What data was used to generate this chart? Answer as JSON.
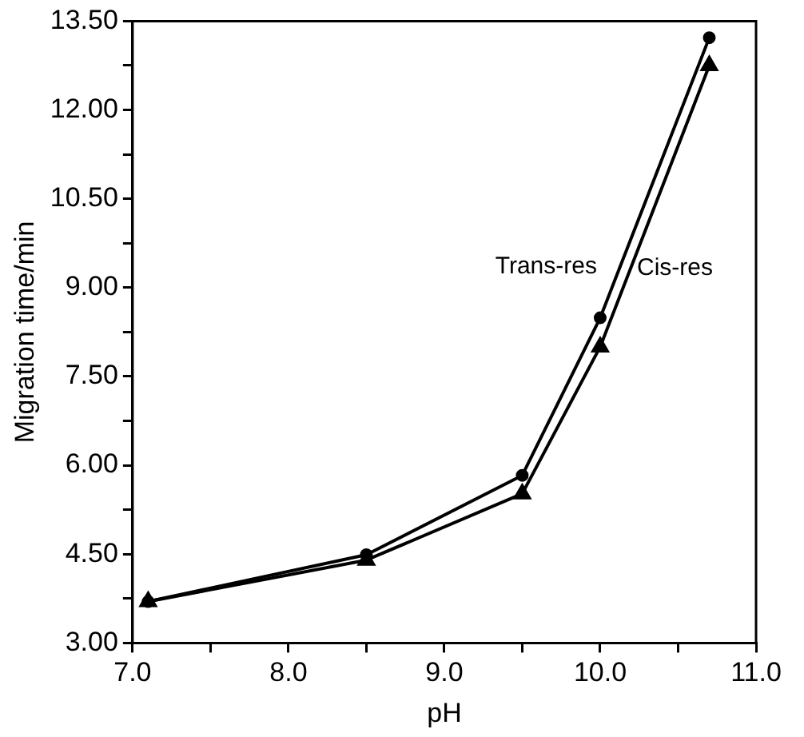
{
  "chart_data": {
    "type": "line",
    "xlabel": "pH",
    "ylabel": "Migration time/min",
    "xlim": [
      7.0,
      11.0
    ],
    "ylim": [
      3.0,
      13.5
    ],
    "xticks": [
      {
        "value": 7.0,
        "label": "7.0"
      },
      {
        "value": 7.5,
        "label": null
      },
      {
        "value": 8.0,
        "label": "8.0"
      },
      {
        "value": 8.5,
        "label": null
      },
      {
        "value": 9.0,
        "label": "9.0"
      },
      {
        "value": 9.5,
        "label": null
      },
      {
        "value": 10.0,
        "label": "10.0"
      },
      {
        "value": 10.5,
        "label": null
      },
      {
        "value": 11.0,
        "label": "11.0"
      }
    ],
    "yticks": [
      {
        "value": 3.0,
        "label": "3.00"
      },
      {
        "value": 3.75,
        "label": null
      },
      {
        "value": 4.5,
        "label": "4.50"
      },
      {
        "value": 5.25,
        "label": null
      },
      {
        "value": 6.0,
        "label": "6.00"
      },
      {
        "value": 6.75,
        "label": null
      },
      {
        "value": 7.5,
        "label": "7.50"
      },
      {
        "value": 8.25,
        "label": null
      },
      {
        "value": 9.0,
        "label": "9.00"
      },
      {
        "value": 9.75,
        "label": null
      },
      {
        "value": 10.5,
        "label": "10.50"
      },
      {
        "value": 11.25,
        "label": null
      },
      {
        "value": 12.0,
        "label": "12.00"
      },
      {
        "value": 12.75,
        "label": null
      },
      {
        "value": 13.5,
        "label": "13.50"
      }
    ],
    "x": [
      7.1,
      8.5,
      9.5,
      10.0,
      10.7
    ],
    "grid": false,
    "legend": false,
    "line_style": "solid",
    "series": [
      {
        "name": "Trans-res",
        "color": "#000000",
        "marker": "circle",
        "values": [
          3.7,
          4.49,
          5.83,
          8.49,
          13.22
        ]
      },
      {
        "name": "Cis-res",
        "color": "#000000",
        "marker": "triangle",
        "values": [
          3.7,
          4.4,
          5.52,
          8.0,
          12.75
        ]
      }
    ]
  }
}
